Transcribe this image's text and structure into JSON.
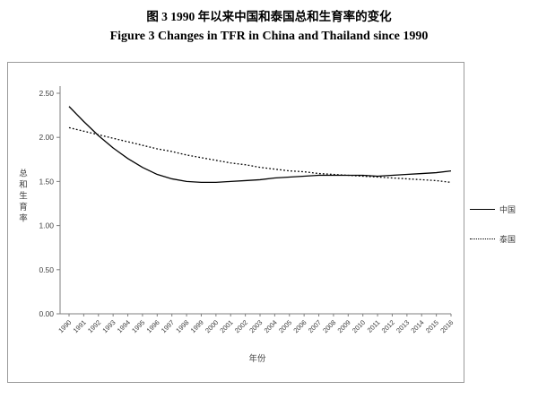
{
  "page": {
    "title_zh": "图 3 1990 年以来中国和泰国总和生育率的变化",
    "title_en": "Figure 3 Changes in TFR in China and Thailand since 1990"
  },
  "chart_data": {
    "type": "line",
    "title": "",
    "xlabel": "年份",
    "ylabel": "总和生育率",
    "ylim": [
      0,
      2.5
    ],
    "ytick_step": 0.5,
    "ytick_labels": [
      "0.00",
      "0.50",
      "1.00",
      "1.50",
      "2.00",
      "2.50"
    ],
    "grid": false,
    "legend_position": "right",
    "categories": [
      1990,
      1991,
      1992,
      1993,
      1994,
      1995,
      1996,
      1997,
      1998,
      1999,
      2000,
      2001,
      2002,
      2003,
      2004,
      2005,
      2006,
      2007,
      2008,
      2009,
      2010,
      2011,
      2012,
      2013,
      2014,
      2015,
      2016
    ],
    "series": [
      {
        "name": "中国",
        "style": "solid",
        "color": "#000000",
        "values": [
          2.35,
          2.18,
          2.02,
          1.88,
          1.76,
          1.66,
          1.58,
          1.53,
          1.5,
          1.49,
          1.49,
          1.5,
          1.51,
          1.52,
          1.54,
          1.55,
          1.56,
          1.57,
          1.57,
          1.57,
          1.57,
          1.56,
          1.57,
          1.58,
          1.59,
          1.6,
          1.62
        ]
      },
      {
        "name": "泰国",
        "style": "dotted",
        "color": "#000000",
        "values": [
          2.11,
          2.07,
          2.03,
          1.99,
          1.95,
          1.91,
          1.87,
          1.84,
          1.8,
          1.77,
          1.74,
          1.71,
          1.69,
          1.66,
          1.64,
          1.62,
          1.61,
          1.59,
          1.58,
          1.57,
          1.56,
          1.55,
          1.54,
          1.53,
          1.52,
          1.51,
          1.49
        ]
      }
    ]
  }
}
